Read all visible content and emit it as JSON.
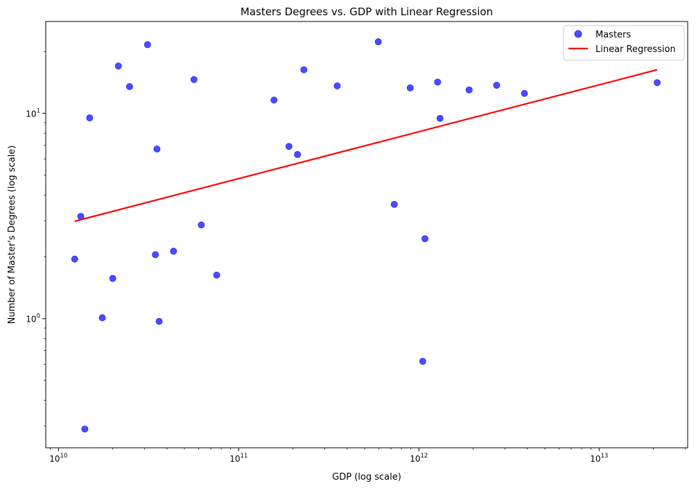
{
  "chart_data": {
    "type": "scatter",
    "title": "Masters Degrees vs. GDP with Linear Regression",
    "xlabel": "GDP (log scale)",
    "ylabel": "Number of Master's Degrees (log scale)",
    "x_scale": "log",
    "y_scale": "log",
    "xlim": [
      8500000000.0,
      31000000000000.0
    ],
    "ylim": [
      0.235,
      28.0
    ],
    "grid": false,
    "legend_position": "top-right",
    "x_ticks": [
      {
        "value": 10000000000.0,
        "exp": "10",
        "base": "10"
      },
      {
        "value": 100000000000.0,
        "exp": "11",
        "base": "10"
      },
      {
        "value": 1000000000000.0,
        "exp": "12",
        "base": "10"
      },
      {
        "value": 10000000000000.0,
        "exp": "13",
        "base": "10"
      }
    ],
    "y_ticks": [
      {
        "value": 1,
        "exp": "0",
        "base": "10"
      },
      {
        "value": 10,
        "exp": "1",
        "base": "10"
      }
    ],
    "series": [
      {
        "name": "Masters",
        "kind": "scatter",
        "color": "#0000ff",
        "points": [
          {
            "x": 12300000000.0,
            "y": 1.95
          },
          {
            "x": 13300000000.0,
            "y": 3.15
          },
          {
            "x": 14000000000.0,
            "y": 0.29
          },
          {
            "x": 14900000000.0,
            "y": 9.5
          },
          {
            "x": 17500000000.0,
            "y": 1.01
          },
          {
            "x": 20000000000.0,
            "y": 1.57
          },
          {
            "x": 21500000000.0,
            "y": 17.0
          },
          {
            "x": 24800000000.0,
            "y": 13.5
          },
          {
            "x": 31200000000.0,
            "y": 21.6
          },
          {
            "x": 34500000000.0,
            "y": 2.05
          },
          {
            "x": 35200000000.0,
            "y": 6.7
          },
          {
            "x": 36200000000.0,
            "y": 0.97
          },
          {
            "x": 43500000000.0,
            "y": 2.13
          },
          {
            "x": 56500000000.0,
            "y": 14.6
          },
          {
            "x": 62000000000.0,
            "y": 2.86
          },
          {
            "x": 75500000000.0,
            "y": 1.63
          },
          {
            "x": 157000000000.0,
            "y": 11.6
          },
          {
            "x": 190000000000.0,
            "y": 6.9
          },
          {
            "x": 212000000000.0,
            "y": 6.3
          },
          {
            "x": 230000000000.0,
            "y": 16.3
          },
          {
            "x": 352000000000.0,
            "y": 13.6
          },
          {
            "x": 595000000000.0,
            "y": 22.3
          },
          {
            "x": 730000000000.0,
            "y": 3.6
          },
          {
            "x": 895000000000.0,
            "y": 13.3
          },
          {
            "x": 1050000000000.0,
            "y": 0.62
          },
          {
            "x": 1080000000000.0,
            "y": 2.45
          },
          {
            "x": 1270000000000.0,
            "y": 14.2
          },
          {
            "x": 1310000000000.0,
            "y": 9.45
          },
          {
            "x": 1900000000000.0,
            "y": 13.0
          },
          {
            "x": 2700000000000.0,
            "y": 13.7
          },
          {
            "x": 3850000000000.0,
            "y": 12.5
          },
          {
            "x": 21000000000000.0,
            "y": 14.1
          }
        ]
      },
      {
        "name": "Linear Regression",
        "kind": "line",
        "color": "#ff0000",
        "points": [
          {
            "x": 12300000000.0,
            "y": 2.98
          },
          {
            "x": 21000000000000.0,
            "y": 16.3
          }
        ]
      }
    ]
  }
}
